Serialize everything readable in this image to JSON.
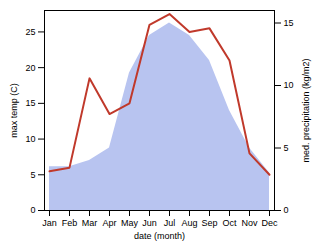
{
  "chart_data": {
    "type": "line",
    "categories": [
      "Jan",
      "Feb",
      "Mar",
      "Apr",
      "May",
      "Jun",
      "Jul",
      "Aug",
      "Sep",
      "Oct",
      "Nov",
      "Dec"
    ],
    "series": [
      {
        "type": "area",
        "color": "#b8c4f0",
        "axis": "y2",
        "values": [
          3.5,
          3.5,
          4.0,
          5.0,
          11.0,
          14.0,
          15.0,
          14.0,
          12.0,
          8.0,
          5.0,
          3.0
        ]
      },
      {
        "type": "line",
        "color": "#c0392b",
        "values": [
          5.5,
          6.0,
          18.5,
          13.5,
          15.0,
          26.0,
          27.5,
          25.0,
          25.5,
          21.0,
          8.0,
          5.0
        ]
      }
    ],
    "xlabel": "date (month)",
    "ylabel": "max temp (C)",
    "y2label": "med. precipitation (kg/m2)",
    "ylim": [
      0,
      28
    ],
    "yticks": [
      0,
      5,
      10,
      15,
      20,
      25
    ],
    "y2lim": [
      0,
      16
    ],
    "y2ticks": [
      0,
      5,
      10,
      15
    ]
  }
}
